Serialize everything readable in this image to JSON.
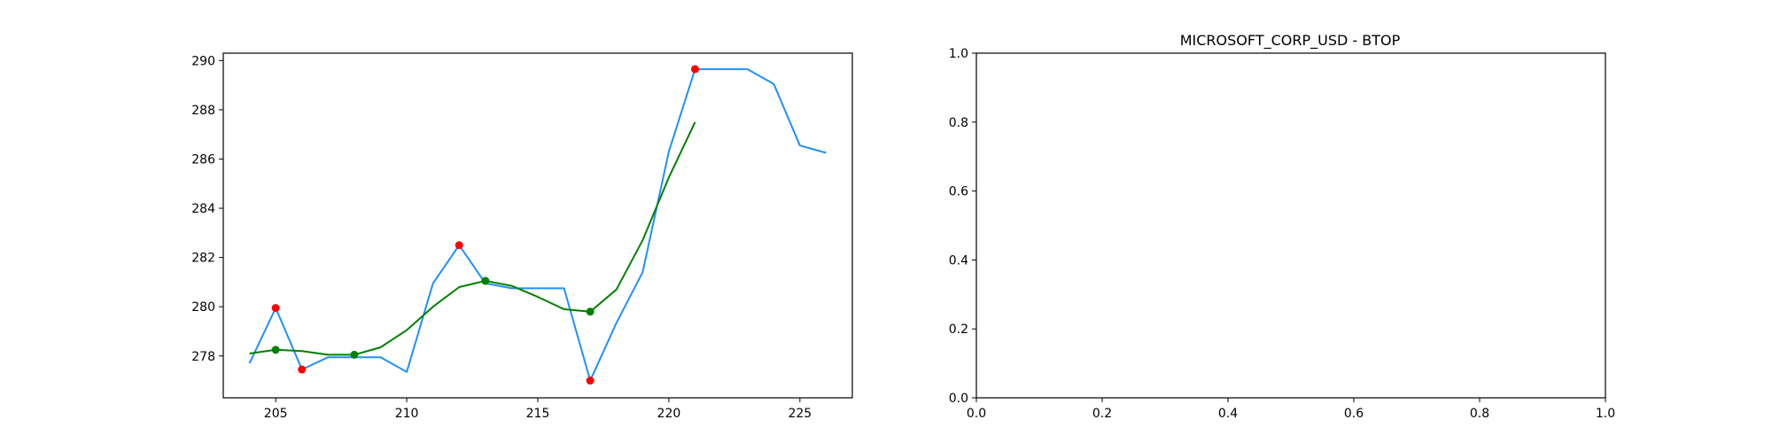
{
  "chart_data": [
    {
      "type": "line",
      "title": "",
      "xlabel": "",
      "ylabel": "",
      "xlim": [
        203.0,
        227.0
      ],
      "ylim": [
        276.3,
        290.3
      ],
      "xticks": [
        205,
        210,
        215,
        220,
        225
      ],
      "yticks": [
        278,
        280,
        282,
        284,
        286,
        288,
        290
      ],
      "grid": false,
      "series": [
        {
          "color": "#1e90ff",
          "x": [
            204,
            205,
            206,
            207,
            208,
            209,
            210,
            211,
            212,
            213,
            214,
            215,
            216,
            217,
            218,
            219,
            220,
            221,
            222,
            223,
            224,
            225,
            226
          ],
          "y": [
            277.7,
            279.95,
            277.45,
            277.95,
            277.95,
            277.95,
            277.35,
            280.95,
            282.5,
            280.95,
            280.75,
            280.75,
            280.75,
            277.0,
            279.35,
            281.4,
            286.3,
            289.65,
            289.65,
            289.65,
            289.05,
            286.55,
            286.25
          ]
        },
        {
          "color": "#008000",
          "x": [
            204,
            205,
            206,
            207,
            208,
            209,
            210,
            211,
            212,
            213,
            214,
            215,
            216,
            217,
            218,
            219,
            220,
            221
          ],
          "y": [
            278.1,
            278.25,
            278.2,
            278.05,
            278.05,
            278.35,
            279.05,
            280.0,
            280.8,
            281.05,
            280.85,
            280.4,
            279.9,
            279.8,
            280.7,
            282.7,
            285.25,
            287.5
          ]
        },
        {
          "type": "scatter",
          "color": "#ff0000",
          "x": [
            205,
            206,
            212,
            217,
            221
          ],
          "y": [
            279.95,
            277.45,
            282.5,
            277.0,
            289.65
          ]
        },
        {
          "type": "scatter",
          "color": "#008000",
          "x": [
            205,
            208,
            213,
            217
          ],
          "y": [
            278.25,
            278.05,
            281.05,
            279.8
          ]
        }
      ]
    },
    {
      "type": "line",
      "title": "MICROSOFT_CORP_USD - BTOP",
      "xlabel": "",
      "ylabel": "",
      "xlim": [
        0.0,
        1.0
      ],
      "ylim": [
        0.0,
        1.0
      ],
      "xticks": [
        "0.0",
        "0.2",
        "0.4",
        "0.6",
        "0.8",
        "1.0"
      ],
      "yticks": [
        "0.0",
        "0.2",
        "0.4",
        "0.6",
        "0.8",
        "1.0"
      ],
      "grid": false,
      "series": []
    }
  ]
}
